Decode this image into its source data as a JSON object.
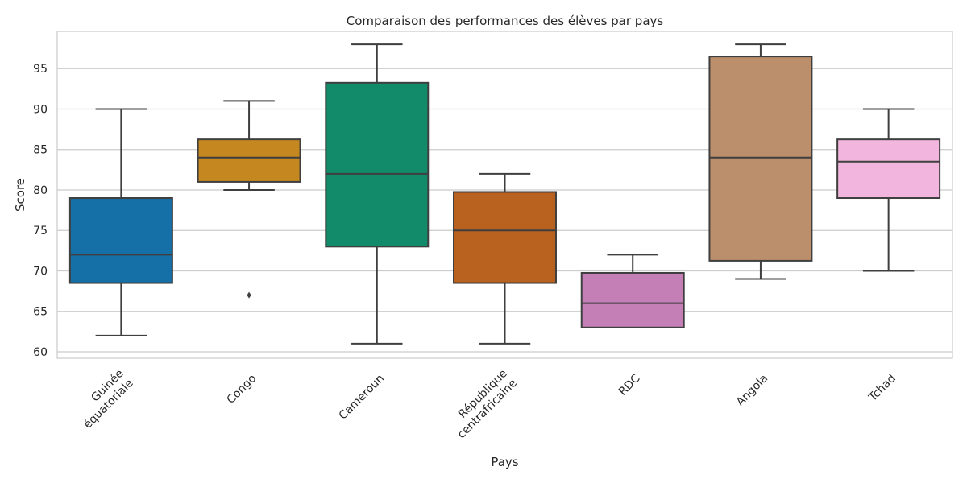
{
  "chart_data": {
    "type": "box",
    "title": "Comparaison des performances des élèves par pays",
    "xlabel": "Pays",
    "ylabel": "Score",
    "ylim": [
      59.2,
      99.6
    ],
    "yticks": [
      60,
      65,
      70,
      75,
      80,
      85,
      90,
      95
    ],
    "grid": true,
    "categories": [
      {
        "label": [
          "Guinée",
          "équatoriale"
        ],
        "whisker_low": 62,
        "q1": 68.5,
        "median": 72,
        "q3": 79,
        "whisker_high": 90,
        "outliers": [],
        "color": "#1470a6"
      },
      {
        "label": [
          "Congo"
        ],
        "whisker_low": 80,
        "q1": 81,
        "median": 84,
        "q3": 86.25,
        "whisker_high": 91,
        "outliers": [
          67
        ],
        "color": "#c5871f"
      },
      {
        "label": [
          "Cameroun"
        ],
        "whisker_low": 61,
        "q1": 73,
        "median": 82,
        "q3": 93.25,
        "whisker_high": 98,
        "outliers": [],
        "color": "#128b6a"
      },
      {
        "label": [
          "République",
          "centrafricaine"
        ],
        "whisker_low": 61,
        "q1": 68.5,
        "median": 75,
        "q3": 79.75,
        "whisker_high": 82,
        "outliers": [],
        "color": "#b9611e"
      },
      {
        "label": [
          "RDC"
        ],
        "whisker_low": 63,
        "q1": 63,
        "median": 66,
        "q3": 69.75,
        "whisker_high": 72,
        "outliers": [],
        "color": "#c47fb6"
      },
      {
        "label": [
          "Angola"
        ],
        "whisker_low": 69,
        "q1": 71.25,
        "median": 84,
        "q3": 96.5,
        "whisker_high": 98,
        "outliers": [],
        "color": "#bb8f6c"
      },
      {
        "label": [
          "Tchad"
        ],
        "whisker_low": 70,
        "q1": 79,
        "median": 83.5,
        "q3": 86.25,
        "whisker_high": 90,
        "outliers": [],
        "color": "#f2b6de"
      }
    ]
  }
}
